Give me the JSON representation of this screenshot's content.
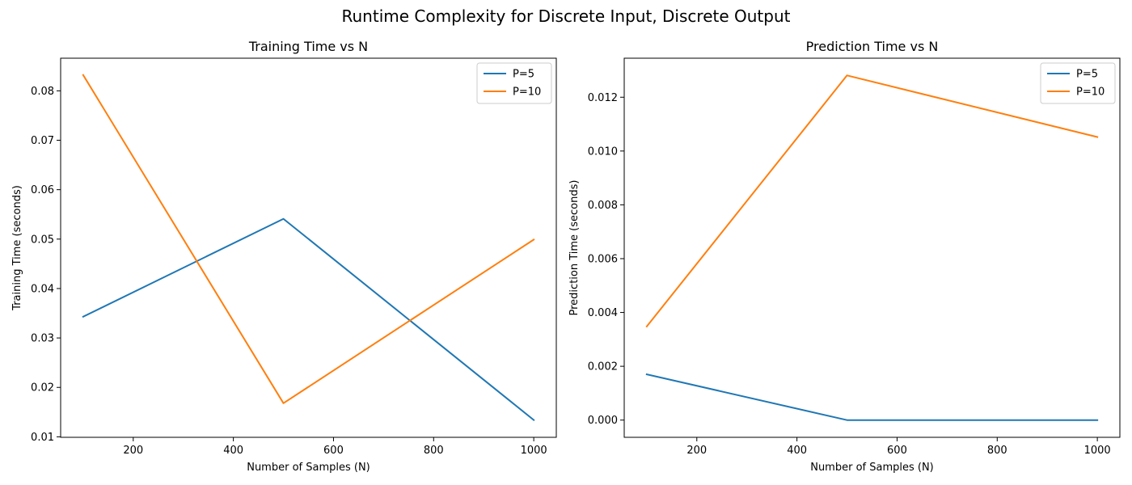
{
  "figure": {
    "title": "Runtime Complexity for Discrete Input, Discrete Output"
  },
  "chart_data": [
    {
      "type": "line",
      "title": "Training Time vs N",
      "xlabel": "Number of Samples (N)",
      "ylabel": "Training Time (seconds)",
      "x": [
        100,
        500,
        1000
      ],
      "series": [
        {
          "name": "P=5",
          "color": "#1f77b4",
          "values": [
            0.0343,
            0.0541,
            0.0134
          ]
        },
        {
          "name": "P=10",
          "color": "#ff7f0e",
          "values": [
            0.0832,
            0.0168,
            0.0499
          ]
        }
      ],
      "xlim": [
        55,
        1045
      ],
      "ylim": [
        0.0099,
        0.0866
      ],
      "xticks": [
        200,
        400,
        600,
        800,
        1000
      ],
      "xtick_labels": [
        "200",
        "400",
        "600",
        "800",
        "1000"
      ],
      "yticks": [
        0.01,
        0.02,
        0.03,
        0.04,
        0.05,
        0.06,
        0.07,
        0.08
      ],
      "ytick_labels": [
        "0.01",
        "0.02",
        "0.03",
        "0.04",
        "0.05",
        "0.06",
        "0.07",
        "0.08"
      ],
      "legend": "top-right",
      "grid": false
    },
    {
      "type": "line",
      "title": "Prediction Time vs N",
      "xlabel": "Number of Samples (N)",
      "ylabel": "Prediction Time (seconds)",
      "x": [
        100,
        500,
        1000
      ],
      "series": [
        {
          "name": "P=5",
          "color": "#1f77b4",
          "values": [
            0.0017,
            0.0,
            0.0
          ]
        },
        {
          "name": "P=10",
          "color": "#ff7f0e",
          "values": [
            0.00348,
            0.01281,
            0.01052
          ]
        }
      ],
      "xlim": [
        55,
        1045
      ],
      "ylim": [
        -0.00064,
        0.01345
      ],
      "xticks": [
        200,
        400,
        600,
        800,
        1000
      ],
      "xtick_labels": [
        "200",
        "400",
        "600",
        "800",
        "1000"
      ],
      "yticks": [
        0.0,
        0.002,
        0.004,
        0.006,
        0.008,
        0.01,
        0.012
      ],
      "ytick_labels": [
        "0.000",
        "0.002",
        "0.004",
        "0.006",
        "0.008",
        "0.010",
        "0.012"
      ],
      "legend": "top-right",
      "grid": false
    }
  ]
}
